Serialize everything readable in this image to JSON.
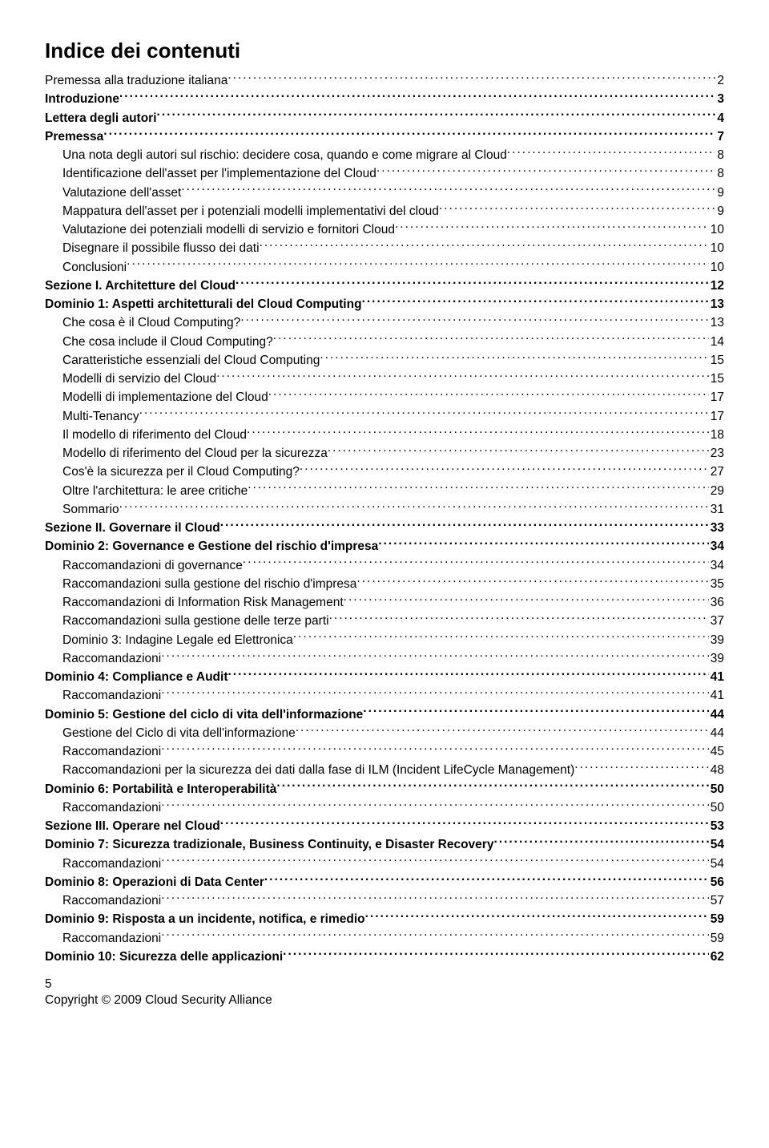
{
  "title": "Indice dei contenuti",
  "entries": [
    {
      "label": "Premessa alla traduzione italiana",
      "page": "2",
      "indent": 0,
      "bold": false
    },
    {
      "label": "Introduzione",
      "page": "3",
      "indent": 0,
      "bold": true
    },
    {
      "label": "Lettera degli autori",
      "page": "4",
      "indent": 0,
      "bold": true
    },
    {
      "label": "Premessa",
      "page": "7",
      "indent": 0,
      "bold": true
    },
    {
      "label": "Una nota degli autori sul rischio: decidere cosa, quando e come migrare al Cloud",
      "page": "8",
      "indent": 1,
      "bold": false
    },
    {
      "label": "Identificazione dell'asset per l'implementazione del Cloud",
      "page": "8",
      "indent": 1,
      "bold": false
    },
    {
      "label": "Valutazione dell'asset",
      "page": "9",
      "indent": 1,
      "bold": false
    },
    {
      "label": "Mappatura dell'asset per i potenziali modelli implementativi del cloud",
      "page": "9",
      "indent": 1,
      "bold": false
    },
    {
      "label": "Valutazione dei potenziali modelli di servizio e fornitori Cloud",
      "page": "10",
      "indent": 1,
      "bold": false
    },
    {
      "label": "Disegnare il possibile flusso dei dati",
      "page": "10",
      "indent": 1,
      "bold": false
    },
    {
      "label": "Conclusioni",
      "page": "10",
      "indent": 1,
      "bold": false
    },
    {
      "label": "Sezione I. Architetture del Cloud",
      "page": "12",
      "indent": 0,
      "bold": true
    },
    {
      "label": "Dominio 1: Aspetti architetturali del Cloud Computing",
      "page": "13",
      "indent": 0,
      "bold": true
    },
    {
      "label": "Che cosa è il Cloud Computing?",
      "page": "13",
      "indent": 1,
      "bold": false
    },
    {
      "label": "Che cosa include il Cloud Computing?",
      "page": "14",
      "indent": 1,
      "bold": false
    },
    {
      "label": "Caratteristiche essenziali del Cloud Computing",
      "page": "15",
      "indent": 1,
      "bold": false
    },
    {
      "label": "Modelli di servizio del Cloud",
      "page": "15",
      "indent": 1,
      "bold": false
    },
    {
      "label": "Modelli di implementazione del Cloud",
      "page": "17",
      "indent": 1,
      "bold": false
    },
    {
      "label": "Multi-Tenancy",
      "page": "17",
      "indent": 1,
      "bold": false
    },
    {
      "label": "Il modello di riferimento del Cloud",
      "page": "18",
      "indent": 1,
      "bold": false
    },
    {
      "label": "Modello di riferimento del Cloud per la sicurezza",
      "page": "23",
      "indent": 1,
      "bold": false
    },
    {
      "label": "Cos'è la sicurezza per il Cloud Computing?",
      "page": "27",
      "indent": 1,
      "bold": false
    },
    {
      "label": "Oltre l'architettura: le aree critiche",
      "page": "29",
      "indent": 1,
      "bold": false
    },
    {
      "label": "Sommario",
      "page": "31",
      "indent": 1,
      "bold": false
    },
    {
      "label": "Sezione II. Governare il Cloud",
      "page": "33",
      "indent": 0,
      "bold": true
    },
    {
      "label": "Dominio 2: Governance e Gestione del rischio d'impresa",
      "page": "34",
      "indent": 0,
      "bold": true
    },
    {
      "label": "Raccomandazioni di governance",
      "page": "34",
      "indent": 1,
      "bold": false
    },
    {
      "label": "Raccomandazioni sulla gestione del rischio d'impresa",
      "page": "35",
      "indent": 1,
      "bold": false
    },
    {
      "label": "Raccomandazioni di Information Risk Management",
      "page": "36",
      "indent": 1,
      "bold": false
    },
    {
      "label": "Raccomandazioni sulla gestione delle terze parti",
      "page": "37",
      "indent": 1,
      "bold": false
    },
    {
      "label": "Dominio 3: Indagine Legale ed Elettronica",
      "page": "39",
      "indent": 1,
      "bold": false
    },
    {
      "label": "Raccomandazioni",
      "page": "39",
      "indent": 1,
      "bold": false
    },
    {
      "label": "Dominio 4: Compliance e Audit",
      "page": "41",
      "indent": 0,
      "bold": true
    },
    {
      "label": "Raccomandazioni",
      "page": "41",
      "indent": 1,
      "bold": false
    },
    {
      "label": "Dominio 5: Gestione del ciclo di vita dell'informazione",
      "page": "44",
      "indent": 0,
      "bold": true
    },
    {
      "label": "Gestione del Ciclo di vita dell'informazione",
      "page": "44",
      "indent": 1,
      "bold": false
    },
    {
      "label": "Raccomandazioni",
      "page": "45",
      "indent": 1,
      "bold": false
    },
    {
      "label": "Raccomandazioni per la sicurezza dei dati dalla fase di ILM (Incident LifeCycle Management)",
      "page": "48",
      "indent": 1,
      "bold": false
    },
    {
      "label": "Dominio 6: Portabilità e Interoperabilità",
      "page": "50",
      "indent": 0,
      "bold": true
    },
    {
      "label": "Raccomandazioni",
      "page": "50",
      "indent": 1,
      "bold": false
    },
    {
      "label": "Sezione III. Operare nel Cloud",
      "page": "53",
      "indent": 0,
      "bold": true
    },
    {
      "label": "Dominio 7: Sicurezza tradizionale, Business Continuity, e Disaster Recovery",
      "page": "54",
      "indent": 0,
      "bold": true
    },
    {
      "label": "Raccomandazioni",
      "page": "54",
      "indent": 1,
      "bold": false
    },
    {
      "label": "Dominio 8: Operazioni di Data Center",
      "page": "56",
      "indent": 0,
      "bold": true
    },
    {
      "label": "Raccomandazioni",
      "page": "57",
      "indent": 1,
      "bold": false
    },
    {
      "label": "Dominio 9: Risposta a un incidente, notifica, e rimedio",
      "page": "59",
      "indent": 0,
      "bold": true
    },
    {
      "label": "Raccomandazioni",
      "page": "59",
      "indent": 1,
      "bold": false
    },
    {
      "label": "Dominio 10: Sicurezza delle applicazioni",
      "page": "62",
      "indent": 0,
      "bold": true
    }
  ],
  "footer": {
    "page_number": "5",
    "copyright": "Copyright © 2009 Cloud Security Alliance"
  }
}
